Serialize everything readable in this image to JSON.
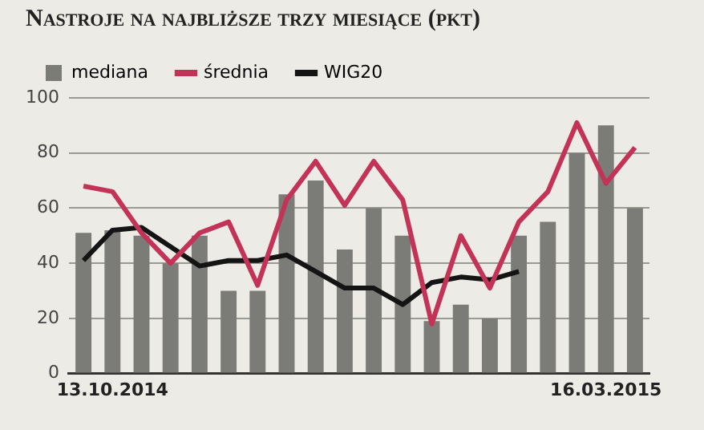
{
  "chart_data": {
    "type": "bar",
    "title": "Nastroje na najbliższe trzy miesiące (pkt)",
    "categories": [
      null,
      "13.10.2014",
      null,
      null,
      null,
      null,
      null,
      null,
      null,
      null,
      null,
      null,
      null,
      null,
      null,
      null,
      null,
      null,
      "16.03.2015",
      null
    ],
    "series": [
      {
        "name": "mediana",
        "color": "#7b7c77",
        "values": [
          51,
          52,
          50,
          40,
          50,
          30,
          30,
          65,
          70,
          45,
          60,
          50,
          19,
          25,
          20,
          50,
          55,
          80,
          90,
          60
        ]
      },
      {
        "name": "średnia",
        "type": "line",
        "color": "#c33358",
        "values": [
          68,
          66,
          51,
          40,
          51,
          55,
          32,
          63,
          77,
          61,
          77,
          63,
          18,
          50,
          31,
          55,
          66,
          91,
          69,
          82
        ]
      },
      {
        "name": "WIG20",
        "type": "line",
        "color": "#141414",
        "values": [
          41,
          52,
          53,
          46,
          39,
          41,
          41,
          43,
          37,
          31,
          31,
          25,
          33,
          35,
          34,
          37,
          null,
          null,
          null,
          null
        ]
      }
    ],
    "ylim": [
      0,
      100
    ],
    "yticks": [
      0,
      20,
      40,
      60,
      80,
      100
    ],
    "grid": "y",
    "legend": "top left",
    "marker": "none",
    "line_style": "solid"
  }
}
